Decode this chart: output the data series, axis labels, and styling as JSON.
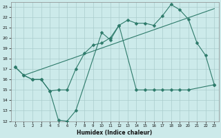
{
  "xlabel": "Humidex (Indice chaleur)",
  "color": "#2d7a6a",
  "background_color": "#cceaea",
  "grid_color": "#aacccc",
  "xlim": [
    -0.5,
    23.5
  ],
  "ylim": [
    12,
    23.4
  ],
  "xticks": [
    0,
    1,
    2,
    3,
    4,
    5,
    6,
    7,
    8,
    9,
    10,
    11,
    12,
    13,
    14,
    15,
    16,
    17,
    18,
    19,
    20,
    21,
    22,
    23
  ],
  "yticks": [
    12,
    13,
    14,
    15,
    16,
    17,
    18,
    19,
    20,
    21,
    22,
    23
  ],
  "line1_x": [
    0,
    1,
    2,
    3,
    4,
    5,
    6,
    7,
    10,
    11,
    12,
    13,
    14,
    15,
    16,
    17,
    18,
    19,
    20,
    21,
    22,
    23
  ],
  "line1_y": [
    17.2,
    16.4,
    16.0,
    16.0,
    14.9,
    12.1,
    12.0,
    13.0,
    20.5,
    19.8,
    21.2,
    21.7,
    21.4,
    21.4,
    21.2,
    22.1,
    23.2,
    22.7,
    21.8,
    19.5,
    18.3,
    15.5
  ],
  "line2_x": [
    0,
    1,
    2,
    3,
    4,
    5,
    6,
    7,
    8,
    9,
    10,
    11,
    12,
    14,
    15,
    16,
    17,
    18,
    19,
    20,
    23
  ],
  "line2_y": [
    17.2,
    16.4,
    16.0,
    16.0,
    14.9,
    15.0,
    15.0,
    17.0,
    18.5,
    19.3,
    19.5,
    20.0,
    21.2,
    15.0,
    15.0,
    15.0,
    15.0,
    15.0,
    15.0,
    15.0,
    15.5
  ],
  "line3_x": [
    1,
    23
  ],
  "line3_y": [
    16.4,
    22.8
  ],
  "markersize": 2.5
}
